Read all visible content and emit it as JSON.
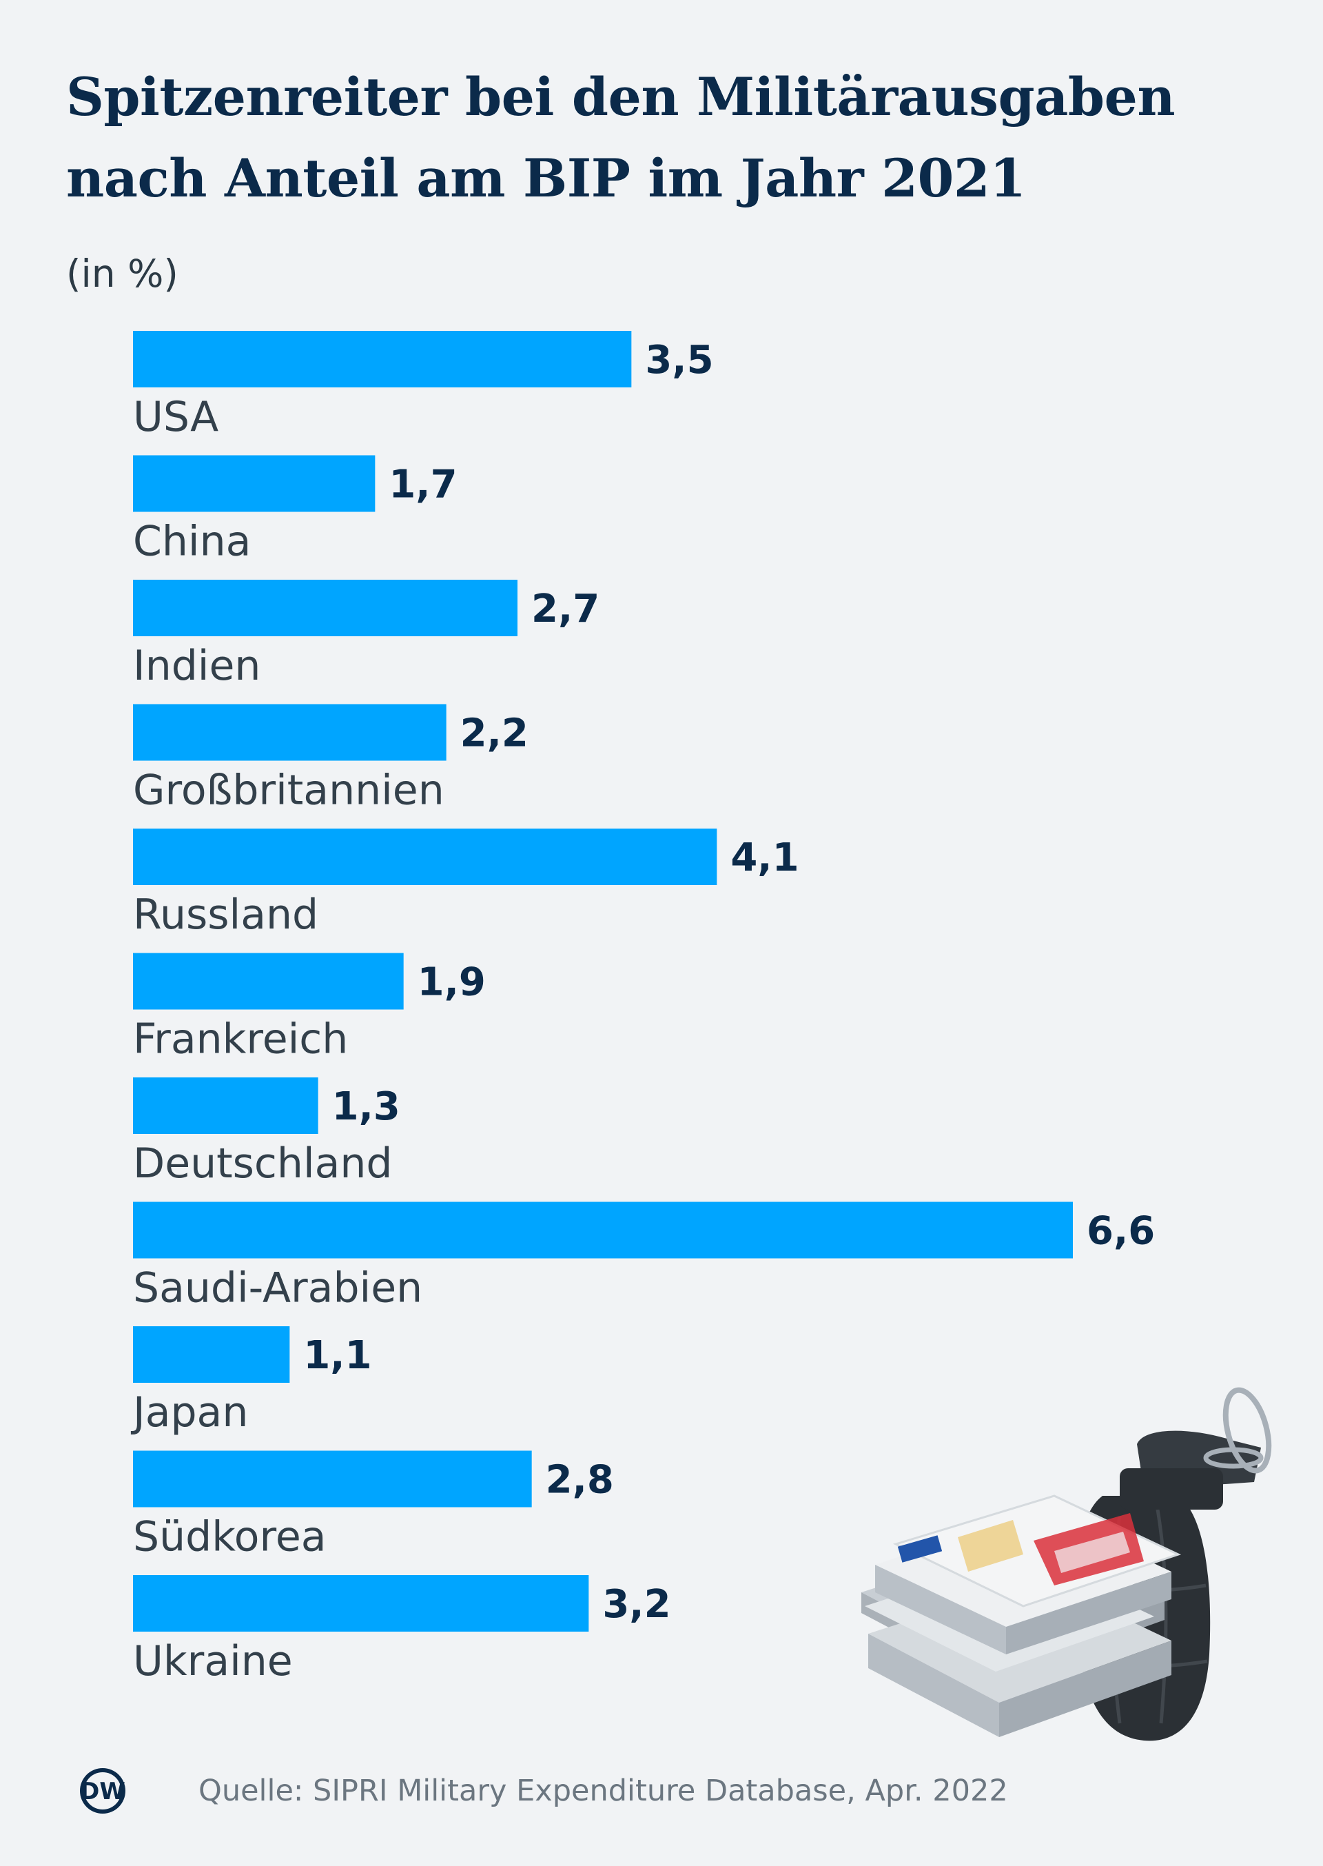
{
  "title": "Spitzenreiter bei den Militärausgaben nach Anteil am BIP im Jahr 2021",
  "unit_label": "(in %)",
  "source": "Quelle: SIPRI Military Expenditure Database, Apr. 2022",
  "logo_text": "DW",
  "colors": {
    "bar": "#00a5ff",
    "title": "#0b2a4a",
    "background": "#f1f3f5"
  },
  "chart_data": {
    "type": "bar",
    "orientation": "horizontal",
    "title": "Spitzenreiter bei den Militärausgaben nach Anteil am BIP im Jahr 2021",
    "ylabel": "(in %)",
    "xlim": [
      0,
      6.6
    ],
    "grid": false,
    "categories": [
      "USA",
      "China",
      "Indien",
      "Großbritannien",
      "Russland",
      "Frankreich",
      "Deutschland",
      "Saudi-Arabien",
      "Japan",
      "Südkorea",
      "Ukraine"
    ],
    "values": [
      3.5,
      1.7,
      2.7,
      2.2,
      4.1,
      1.9,
      1.3,
      6.6,
      1.1,
      2.8,
      3.2
    ],
    "value_labels": [
      "3,5",
      "1,7",
      "2,7",
      "2,2",
      "4,1",
      "1,9",
      "1,3",
      "6,6",
      "1,1",
      "2,8",
      "3,2"
    ]
  }
}
